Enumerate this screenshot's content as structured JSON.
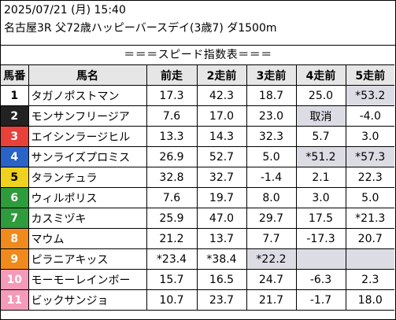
{
  "header": {
    "date": "2025/07/21 (月) 15:40",
    "race": "名古屋3R 父72歳ハッピーバースデイ(3歳7) ダ1500m"
  },
  "banner": "＝＝＝スピード指数表＝＝＝",
  "columns": [
    "馬番",
    "馬名",
    "前走",
    "2走前",
    "3走前",
    "4走前",
    "5走前"
  ],
  "colors": {
    "frame1": "#ffffff",
    "frame2": "#222222",
    "frame3": "#e8413a",
    "frame4": "#2a63c8",
    "frame5": "#f0d21e",
    "frame6": "#2e9b3c",
    "frame7": "#f08a1c",
    "frame8": "#f59ab8",
    "highlight": "#dcdce4"
  },
  "rows": [
    {
      "num": "1",
      "name": "タガノポストマン",
      "vals": [
        "17.3",
        "42.3",
        "18.7",
        "25.0",
        "*53.2"
      ],
      "hl": [
        false,
        false,
        false,
        false,
        true
      ],
      "bg": "#ffffff",
      "fg": "#000000"
    },
    {
      "num": "2",
      "name": "モンサンフリージア",
      "vals": [
        "7.6",
        "17.0",
        "23.0",
        "取消",
        "-4.0"
      ],
      "hl": [
        false,
        false,
        false,
        true,
        false
      ],
      "bg": "#222222",
      "fg": "#ffffff"
    },
    {
      "num": "3",
      "name": "エイシンラージヒル",
      "vals": [
        "13.3",
        "14.3",
        "32.3",
        "5.7",
        "3.0"
      ],
      "hl": [
        false,
        false,
        false,
        false,
        false
      ],
      "bg": "#e8413a",
      "fg": "#ffffff"
    },
    {
      "num": "4",
      "name": "サンライズプロミス",
      "vals": [
        "26.9",
        "52.7",
        "5.0",
        "*51.2",
        "*57.3"
      ],
      "hl": [
        false,
        false,
        false,
        true,
        true
      ],
      "bg": "#2a63c8",
      "fg": "#ffffff"
    },
    {
      "num": "5",
      "name": "タランチュラ",
      "vals": [
        "32.8",
        "32.7",
        "-1.4",
        "2.1",
        "22.3"
      ],
      "hl": [
        false,
        false,
        false,
        false,
        false
      ],
      "bg": "#f0d21e",
      "fg": "#000000"
    },
    {
      "num": "6",
      "name": "ウィルポリス",
      "vals": [
        "7.6",
        "19.7",
        "8.0",
        "3.0",
        "5.0"
      ],
      "hl": [
        false,
        false,
        false,
        false,
        false
      ],
      "bg": "#2e9b3c",
      "fg": "#ffffff"
    },
    {
      "num": "7",
      "name": "カスミヅキ",
      "vals": [
        "25.9",
        "47.0",
        "29.7",
        "17.5",
        "*21.3"
      ],
      "hl": [
        false,
        false,
        false,
        false,
        false
      ],
      "bg": "#2e9b3c",
      "fg": "#ffffff"
    },
    {
      "num": "8",
      "name": "マウム",
      "vals": [
        "21.2",
        "13.7",
        "7.7",
        "-17.3",
        "20.7"
      ],
      "hl": [
        false,
        false,
        false,
        false,
        false
      ],
      "bg": "#f08a1c",
      "fg": "#ffffff"
    },
    {
      "num": "9",
      "name": "ピラニアキッス",
      "vals": [
        "*23.4",
        "*38.4",
        "*22.2",
        "",
        ""
      ],
      "hl": [
        false,
        false,
        true,
        true,
        true
      ],
      "bg": "#f08a1c",
      "fg": "#ffffff"
    },
    {
      "num": "10",
      "name": "モーモーレインボー",
      "vals": [
        "15.7",
        "16.5",
        "24.7",
        "-6.3",
        "2.3"
      ],
      "hl": [
        false,
        false,
        false,
        false,
        false
      ],
      "bg": "#f59ab8",
      "fg": "#ffffff"
    },
    {
      "num": "11",
      "name": "ビックサンジョ",
      "vals": [
        "10.7",
        "23.7",
        "21.7",
        "-1.7",
        "18.0"
      ],
      "hl": [
        false,
        false,
        false,
        false,
        false
      ],
      "bg": "#f59ab8",
      "fg": "#ffffff"
    }
  ]
}
